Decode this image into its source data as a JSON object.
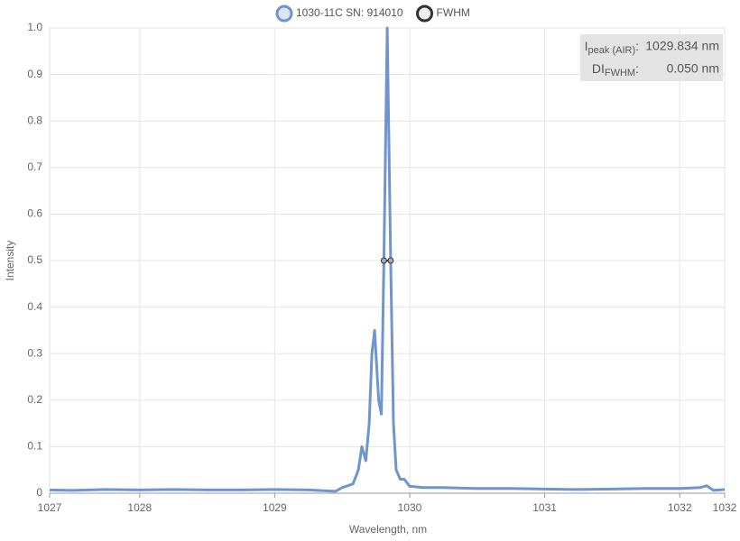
{
  "chart_data": {
    "type": "line",
    "x_label": "Wavelength, nm",
    "y_label": "Intensity",
    "xlim": [
      1027.333,
      1032.333
    ],
    "xticks": [
      {
        "value": 1027.333,
        "label": "1027"
      },
      1028,
      1029,
      1030,
      1031,
      1032,
      {
        "value": 1032.333,
        "label": "1032"
      }
    ],
    "ylim": [
      0,
      1
    ],
    "yticks": [
      0,
      0.1,
      0.2,
      0.3,
      0.4,
      0.5,
      0.6,
      0.7,
      0.8,
      0.9,
      {
        "value": 1,
        "label": "1.0"
      }
    ],
    "grid": true,
    "series": [
      {
        "name": "1030-11C SN: 914010",
        "color": "#7094cf",
        "x": [
          1027.333,
          1027.5,
          1027.75,
          1028,
          1028.25,
          1028.5,
          1028.75,
          1029,
          1029.25,
          1029.45,
          1029.5,
          1029.58,
          1029.62,
          1029.646,
          1029.675,
          1029.7,
          1029.72,
          1029.74,
          1029.77,
          1029.79,
          1029.809,
          1029.834,
          1029.859,
          1029.88,
          1029.9,
          1029.93,
          1029.96,
          1030,
          1030.1,
          1030.25,
          1030.5,
          1030.75,
          1031,
          1031.25,
          1031.5,
          1031.75,
          1032,
          1032.15,
          1032.2,
          1032.25,
          1032.333
        ],
        "values": [
          0.007,
          0.006,
          0.008,
          0.007,
          0.008,
          0.007,
          0.007,
          0.008,
          0.007,
          0.004,
          0.012,
          0.02,
          0.05,
          0.1,
          0.07,
          0.15,
          0.3,
          0.35,
          0.2,
          0.17,
          0.5,
          1.0,
          0.5,
          0.15,
          0.05,
          0.03,
          0.03,
          0.015,
          0.012,
          0.012,
          0.01,
          0.01,
          0.009,
          0.008,
          0.009,
          0.01,
          0.01,
          0.012,
          0.016,
          0.006,
          0.008
        ]
      },
      {
        "name": "FWHM",
        "color": "#333333",
        "x": [
          1029.809,
          1029.859
        ],
        "values": [
          0.5,
          0.5
        ]
      }
    ],
    "annotations": [
      {
        "label": "I",
        "sub": "peak (AIR)",
        "sep": ":",
        "value": "1029.834 nm"
      },
      {
        "label": "DI",
        "sub": "FWHM",
        "sep": ":",
        "value": "0.050 nm"
      }
    ]
  }
}
